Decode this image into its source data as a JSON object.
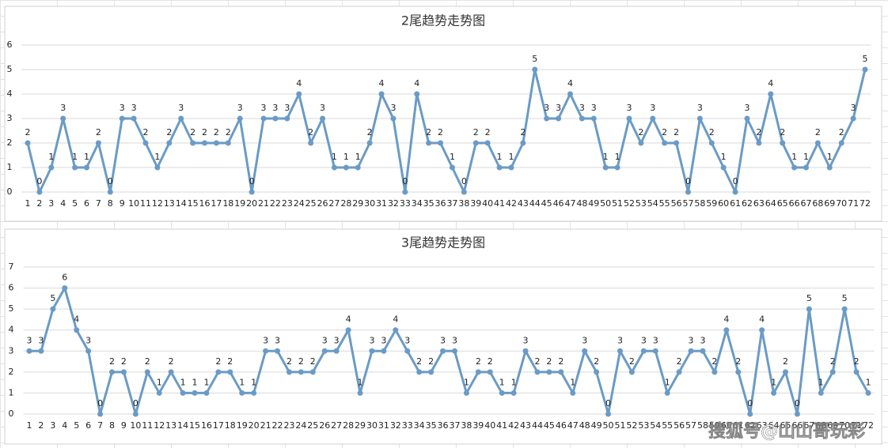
{
  "chart_data": [
    {
      "type": "line",
      "title": "2尾趋势走势图",
      "categories": [
        1,
        2,
        3,
        4,
        5,
        6,
        7,
        8,
        9,
        10,
        11,
        12,
        13,
        14,
        15,
        16,
        17,
        18,
        19,
        20,
        21,
        22,
        23,
        24,
        25,
        26,
        27,
        28,
        29,
        30,
        31,
        32,
        33,
        34,
        35,
        36,
        37,
        38,
        39,
        40,
        41,
        42,
        43,
        44,
        45,
        46,
        47,
        48,
        49,
        50,
        51,
        52,
        53,
        54,
        55,
        56,
        57,
        58,
        59,
        60,
        61,
        62,
        63,
        64,
        65,
        66,
        67,
        68,
        69,
        70,
        71,
        72
      ],
      "values": [
        2,
        0,
        1,
        3,
        1,
        1,
        2,
        0,
        3,
        3,
        2,
        1,
        2,
        3,
        2,
        2,
        2,
        2,
        3,
        0,
        3,
        3,
        3,
        4,
        2,
        3,
        1,
        1,
        1,
        2,
        4,
        3,
        0,
        4,
        2,
        2,
        1,
        0,
        2,
        2,
        1,
        1,
        2,
        5,
        3,
        3,
        4,
        3,
        3,
        1,
        1,
        3,
        2,
        3,
        2,
        2,
        0,
        3,
        2,
        1,
        0,
        3,
        2,
        4,
        2,
        1,
        1,
        2,
        1,
        2,
        3,
        5
      ],
      "color": "#6a9bc6",
      "ylim": [
        0,
        6
      ],
      "yticks": [
        0,
        1,
        2,
        3,
        4,
        5,
        6
      ],
      "grid": true
    },
    {
      "type": "line",
      "title": "3尾趋势走势图",
      "categories": [
        1,
        2,
        3,
        4,
        5,
        6,
        7,
        8,
        9,
        10,
        11,
        12,
        13,
        14,
        15,
        16,
        17,
        18,
        19,
        20,
        21,
        22,
        23,
        24,
        25,
        26,
        27,
        28,
        29,
        30,
        31,
        32,
        33,
        34,
        35,
        36,
        37,
        38,
        39,
        40,
        41,
        42,
        43,
        44,
        45,
        46,
        47,
        48,
        49,
        50,
        51,
        52,
        53,
        54,
        55,
        56,
        57,
        58,
        59,
        60,
        61,
        62,
        63,
        64,
        65,
        66,
        67,
        68,
        69,
        70,
        71,
        72
      ],
      "values": [
        3,
        3,
        5,
        6,
        4,
        3,
        0,
        2,
        2,
        0,
        2,
        1,
        2,
        1,
        1,
        1,
        2,
        2,
        1,
        1,
        3,
        3,
        2,
        2,
        2,
        3,
        3,
        4,
        1,
        3,
        3,
        4,
        3,
        2,
        2,
        3,
        3,
        1,
        2,
        2,
        1,
        1,
        3,
        2,
        2,
        2,
        1,
        3,
        2,
        0,
        3,
        2,
        3,
        3,
        1,
        2,
        3,
        3,
        2,
        4,
        2,
        0,
        4,
        1,
        2,
        0,
        5,
        1,
        2,
        5,
        2,
        1
      ],
      "color": "#6a9bc6",
      "ylim": [
        0,
        7
      ],
      "yticks": [
        0,
        1,
        2,
        3,
        4,
        5,
        6,
        7
      ],
      "grid": true
    }
  ],
  "watermark": "搜狐号@山山哥玩彩"
}
